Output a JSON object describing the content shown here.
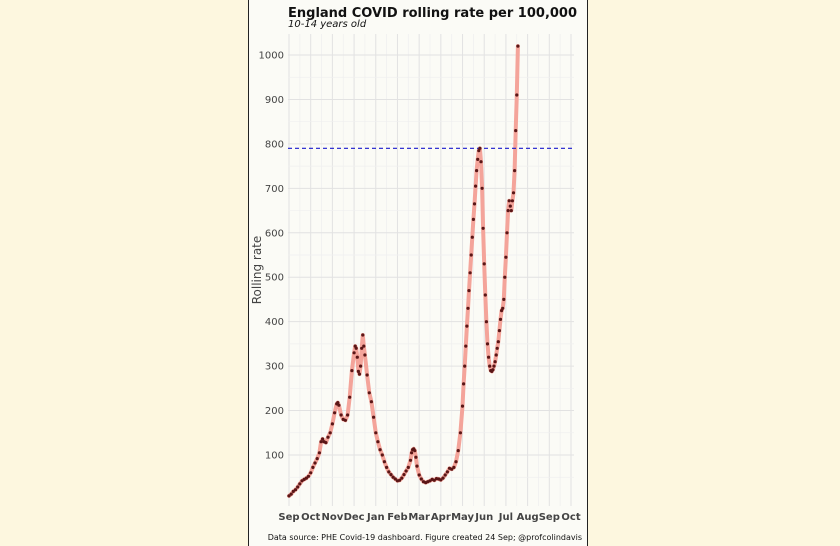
{
  "chart_data": {
    "type": "line",
    "title": "England  COVID rolling rate per 100,000",
    "subtitle": "10-14 years old",
    "xlabel": "",
    "ylabel": "Rolling rate",
    "caption": "Data source: PHE Covid-19 dashboard. Figure created 24 Sep; @profcolindavis",
    "x_ticks": [
      "Sep",
      "Oct",
      "Nov",
      "Dec",
      "Jan",
      "Feb",
      "Mar",
      "Apr",
      "May",
      "Jun",
      "Jul",
      "Aug",
      "Sep",
      "Oct"
    ],
    "y_ticks": [
      100,
      200,
      300,
      400,
      500,
      600,
      700,
      800,
      900,
      1000
    ],
    "xlim": [
      0,
      13
    ],
    "ylim": [
      0,
      1040
    ],
    "reference_line": {
      "y": 790,
      "style": "dashed",
      "color": "#1a1acc"
    },
    "series_color": "#f4a49a",
    "point_color": "#5a1616",
    "grid": true,
    "points": [
      [
        0.0,
        8
      ],
      [
        0.1,
        12
      ],
      [
        0.2,
        18
      ],
      [
        0.3,
        22
      ],
      [
        0.4,
        28
      ],
      [
        0.5,
        35
      ],
      [
        0.6,
        42
      ],
      [
        0.7,
        45
      ],
      [
        0.8,
        48
      ],
      [
        0.9,
        52
      ],
      [
        1.0,
        60
      ],
      [
        1.1,
        72
      ],
      [
        1.2,
        82
      ],
      [
        1.3,
        92
      ],
      [
        1.4,
        105
      ],
      [
        1.48,
        130
      ],
      [
        1.55,
        136
      ],
      [
        1.62,
        130
      ],
      [
        1.7,
        128
      ],
      [
        1.8,
        140
      ],
      [
        1.9,
        150
      ],
      [
        2.0,
        170
      ],
      [
        2.1,
        195
      ],
      [
        2.2,
        215
      ],
      [
        2.25,
        218
      ],
      [
        2.3,
        212
      ],
      [
        2.4,
        190
      ],
      [
        2.5,
        180
      ],
      [
        2.6,
        178
      ],
      [
        2.7,
        190
      ],
      [
        2.8,
        230
      ],
      [
        2.9,
        290
      ],
      [
        3.0,
        330
      ],
      [
        3.05,
        345
      ],
      [
        3.1,
        340
      ],
      [
        3.15,
        320
      ],
      [
        3.2,
        288
      ],
      [
        3.25,
        282
      ],
      [
        3.3,
        300
      ],
      [
        3.35,
        340
      ],
      [
        3.4,
        370
      ],
      [
        3.45,
        345
      ],
      [
        3.5,
        325
      ],
      [
        3.6,
        280
      ],
      [
        3.7,
        240
      ],
      [
        3.8,
        220
      ],
      [
        3.9,
        185
      ],
      [
        4.0,
        150
      ],
      [
        4.1,
        130
      ],
      [
        4.2,
        112
      ],
      [
        4.3,
        100
      ],
      [
        4.4,
        85
      ],
      [
        4.5,
        72
      ],
      [
        4.6,
        62
      ],
      [
        4.7,
        56
      ],
      [
        4.8,
        50
      ],
      [
        4.9,
        46
      ],
      [
        5.0,
        42
      ],
      [
        5.1,
        43
      ],
      [
        5.2,
        48
      ],
      [
        5.3,
        56
      ],
      [
        5.4,
        64
      ],
      [
        5.5,
        72
      ],
      [
        5.6,
        88
      ],
      [
        5.65,
        105
      ],
      [
        5.7,
        112
      ],
      [
        5.75,
        114
      ],
      [
        5.8,
        110
      ],
      [
        5.85,
        95
      ],
      [
        5.9,
        75
      ],
      [
        6.0,
        55
      ],
      [
        6.1,
        46
      ],
      [
        6.2,
        40
      ],
      [
        6.3,
        38
      ],
      [
        6.4,
        40
      ],
      [
        6.5,
        42
      ],
      [
        6.6,
        45
      ],
      [
        6.7,
        43
      ],
      [
        6.8,
        47
      ],
      [
        6.9,
        46
      ],
      [
        7.0,
        44
      ],
      [
        7.1,
        48
      ],
      [
        7.2,
        55
      ],
      [
        7.3,
        62
      ],
      [
        7.4,
        70
      ],
      [
        7.5,
        68
      ],
      [
        7.6,
        72
      ],
      [
        7.7,
        85
      ],
      [
        7.8,
        110
      ],
      [
        7.9,
        150
      ],
      [
        8.0,
        210
      ],
      [
        8.05,
        260
      ],
      [
        8.1,
        300
      ],
      [
        8.15,
        345
      ],
      [
        8.2,
        390
      ],
      [
        8.25,
        430
      ],
      [
        8.3,
        470
      ],
      [
        8.35,
        510
      ],
      [
        8.4,
        550
      ],
      [
        8.45,
        590
      ],
      [
        8.5,
        630
      ],
      [
        8.55,
        665
      ],
      [
        8.6,
        705
      ],
      [
        8.65,
        740
      ],
      [
        8.7,
        765
      ],
      [
        8.75,
        785
      ],
      [
        8.8,
        790
      ],
      [
        8.85,
        760
      ],
      [
        8.9,
        700
      ],
      [
        8.95,
        610
      ],
      [
        9.0,
        530
      ],
      [
        9.05,
        460
      ],
      [
        9.1,
        400
      ],
      [
        9.15,
        350
      ],
      [
        9.2,
        320
      ],
      [
        9.25,
        300
      ],
      [
        9.3,
        290
      ],
      [
        9.35,
        288
      ],
      [
        9.4,
        292
      ],
      [
        9.45,
        300
      ],
      [
        9.5,
        310
      ],
      [
        9.55,
        325
      ],
      [
        9.6,
        340
      ],
      [
        9.65,
        355
      ],
      [
        9.7,
        380
      ],
      [
        9.75,
        405
      ],
      [
        9.8,
        425
      ],
      [
        9.85,
        430
      ],
      [
        9.9,
        450
      ],
      [
        9.95,
        500
      ],
      [
        10.0,
        545
      ],
      [
        10.05,
        600
      ],
      [
        10.1,
        650
      ],
      [
        10.15,
        672
      ],
      [
        10.2,
        660
      ],
      [
        10.25,
        650
      ],
      [
        10.3,
        672
      ],
      [
        10.35,
        690
      ],
      [
        10.4,
        740
      ],
      [
        10.45,
        830
      ],
      [
        10.5,
        910
      ],
      [
        10.55,
        1020
      ]
    ]
  }
}
